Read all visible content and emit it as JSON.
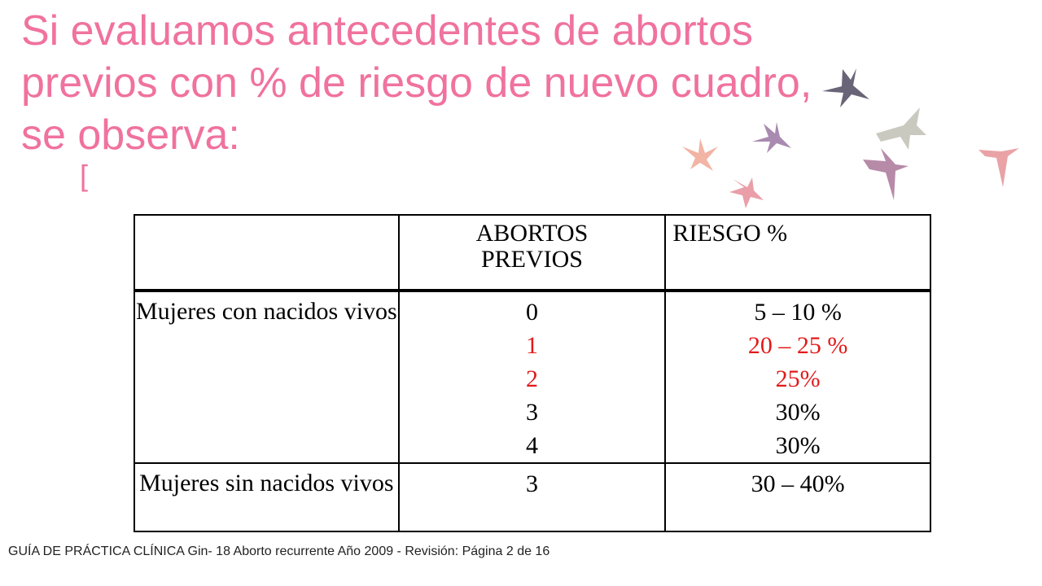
{
  "slide": {
    "title": "Si evaluamos antecedentes de abortos previos con % de riesgo de nuevo cuadro, se observa:",
    "bracket": "[",
    "accent_color": "#f0729e",
    "highlight_color": "#e21a1a"
  },
  "table": {
    "headers": {
      "label": "",
      "abortos_line1": "ABORTOS",
      "abortos_line2": "PREVIOS",
      "riesgo": "RIESGO  %"
    },
    "groups": [
      {
        "label": "Mujeres con nacidos vivos",
        "rows": [
          {
            "abortos": "0",
            "riesgo": "5 – 10 %",
            "highlight": false
          },
          {
            "abortos": "1",
            "riesgo": "20 – 25 %",
            "highlight": true
          },
          {
            "abortos": "2",
            "riesgo": "25%",
            "highlight": true
          },
          {
            "abortos": "3",
            "riesgo": "30%",
            "highlight": false
          },
          {
            "abortos": "4",
            "riesgo": "30%",
            "highlight": false
          }
        ]
      },
      {
        "label": "Mujeres sin nacidos vivos",
        "rows": [
          {
            "abortos": "3",
            "riesgo": "30 – 40%",
            "highlight": false
          }
        ]
      }
    ]
  },
  "footer": "GUÍA DE PRÁCTICA CLÍNICA Gin- 18 Aborto recurrente Año 2009 - Revisión:  Página 2 de 16",
  "decoration": {
    "icon": "birds-flock-icon"
  }
}
